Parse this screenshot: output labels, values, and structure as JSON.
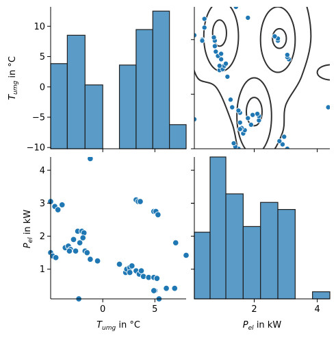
{
  "chart_data": {
    "type": "pairplot",
    "variables": [
      "T_umg",
      "P_el"
    ],
    "colors": {
      "hist_fill": "#5a9bc7",
      "hist_edge": "#1f1f1f",
      "scatter": "#1f77b4",
      "kde": "#2f2f2f"
    },
    "axis_labels": {
      "T_umg": {
        "base": "T",
        "sub": "umg",
        "unit": " in °C"
      },
      "P_el": {
        "base": "P",
        "sub": "el",
        "unit": " in kW"
      }
    },
    "ranges": {
      "T_umg": [
        -5,
        8
      ],
      "P_el": [
        0.1,
        4.4
      ],
      "T_umg_hist_left_axis": [
        -10.2,
        13.2
      ]
    },
    "ticks": {
      "T_umg_left": [
        -10,
        -5,
        0,
        5,
        10
      ],
      "T_umg_bottom": [
        0,
        5
      ],
      "P_el_left": [
        1,
        2,
        3,
        4
      ],
      "P_el_bottom": [
        2,
        4
      ]
    },
    "hist_T_umg": [
      {
        "x0": -5.0,
        "x1": -3.4,
        "h": 0.6
      },
      {
        "x0": -3.4,
        "x1": -1.7,
        "h": 0.8
      },
      {
        "x0": -1.7,
        "x1": 0.0,
        "h": 0.45
      },
      {
        "x0": 0.0,
        "x1": 1.6,
        "h": 0.0
      },
      {
        "x0": 1.6,
        "x1": 3.2,
        "h": 0.59
      },
      {
        "x0": 3.2,
        "x1": 4.8,
        "h": 0.84
      },
      {
        "x0": 4.8,
        "x1": 6.4,
        "h": 0.97
      },
      {
        "x0": 6.4,
        "x1": 8.0,
        "h": 0.17
      }
    ],
    "hist_P_el": [
      {
        "x0": 0.1,
        "x1": 0.6,
        "h": 0.47
      },
      {
        "x0": 0.6,
        "x1": 1.1,
        "h": 1.0
      },
      {
        "x0": 1.1,
        "x1": 1.65,
        "h": 0.74
      },
      {
        "x0": 1.65,
        "x1": 2.2,
        "h": 0.51
      },
      {
        "x0": 2.2,
        "x1": 2.75,
        "h": 0.68
      },
      {
        "x0": 2.75,
        "x1": 3.3,
        "h": 0.63
      },
      {
        "x0": 3.3,
        "x1": 3.85,
        "h": 0.0
      },
      {
        "x0": 3.85,
        "x1": 4.4,
        "h": 0.05
      }
    ],
    "points": [
      {
        "t": -5.0,
        "p": 3.05
      },
      {
        "t": -4.6,
        "p": 2.9
      },
      {
        "t": -4.3,
        "p": 2.8
      },
      {
        "t": -3.9,
        "p": 2.95
      },
      {
        "t": -5.0,
        "p": 1.5
      },
      {
        "t": -4.8,
        "p": 1.4
      },
      {
        "t": -4.5,
        "p": 1.35
      },
      {
        "t": -3.6,
        "p": 1.65
      },
      {
        "t": -3.3,
        "p": 1.7
      },
      {
        "t": -3.1,
        "p": 1.6
      },
      {
        "t": -3.2,
        "p": 1.55
      },
      {
        "t": -2.8,
        "p": 1.9
      },
      {
        "t": -2.6,
        "p": 1.55
      },
      {
        "t": -2.4,
        "p": 2.15
      },
      {
        "t": -2.2,
        "p": 1.8
      },
      {
        "t": -2.0,
        "p": 2.15
      },
      {
        "t": -1.8,
        "p": 2.1
      },
      {
        "t": -1.9,
        "p": 1.95
      },
      {
        "t": -1.7,
        "p": 1.55
      },
      {
        "t": -1.5,
        "p": 1.5
      },
      {
        "t": -1.2,
        "p": 1.3
      },
      {
        "t": -0.5,
        "p": 1.25
      },
      {
        "t": -1.2,
        "p": 4.35
      },
      {
        "t": -2.3,
        "p": 0.1
      },
      {
        "t": 1.6,
        "p": 1.15
      },
      {
        "t": 2.2,
        "p": 0.9
      },
      {
        "t": 2.3,
        "p": 1.0
      },
      {
        "t": 2.6,
        "p": 1.05
      },
      {
        "t": 2.8,
        "p": 1.1
      },
      {
        "t": 3.2,
        "p": 0.95
      },
      {
        "t": 3.5,
        "p": 0.85
      },
      {
        "t": 3.7,
        "p": 0.95
      },
      {
        "t": 3.9,
        "p": 0.78
      },
      {
        "t": 4.4,
        "p": 0.75
      },
      {
        "t": 4.9,
        "p": 0.75
      },
      {
        "t": 5.2,
        "p": 0.72
      },
      {
        "t": 5.0,
        "p": 0.35
      },
      {
        "t": 4.9,
        "p": 0.35
      },
      {
        "t": 5.4,
        "p": 0.1
      },
      {
        "t": 6.1,
        "p": 0.42
      },
      {
        "t": 6.9,
        "p": 0.42
      },
      {
        "t": 3.2,
        "p": 3.1
      },
      {
        "t": 3.4,
        "p": 3.05
      },
      {
        "t": 3.6,
        "p": 3.05
      },
      {
        "t": 4.9,
        "p": 2.75
      },
      {
        "t": 5.1,
        "p": 2.75
      },
      {
        "t": 5.3,
        "p": 2.65
      },
      {
        "t": 7.0,
        "p": 1.8
      },
      {
        "t": 8.0,
        "p": 1.42
      },
      {
        "t": 2.6,
        "p": 0.9
      }
    ]
  }
}
